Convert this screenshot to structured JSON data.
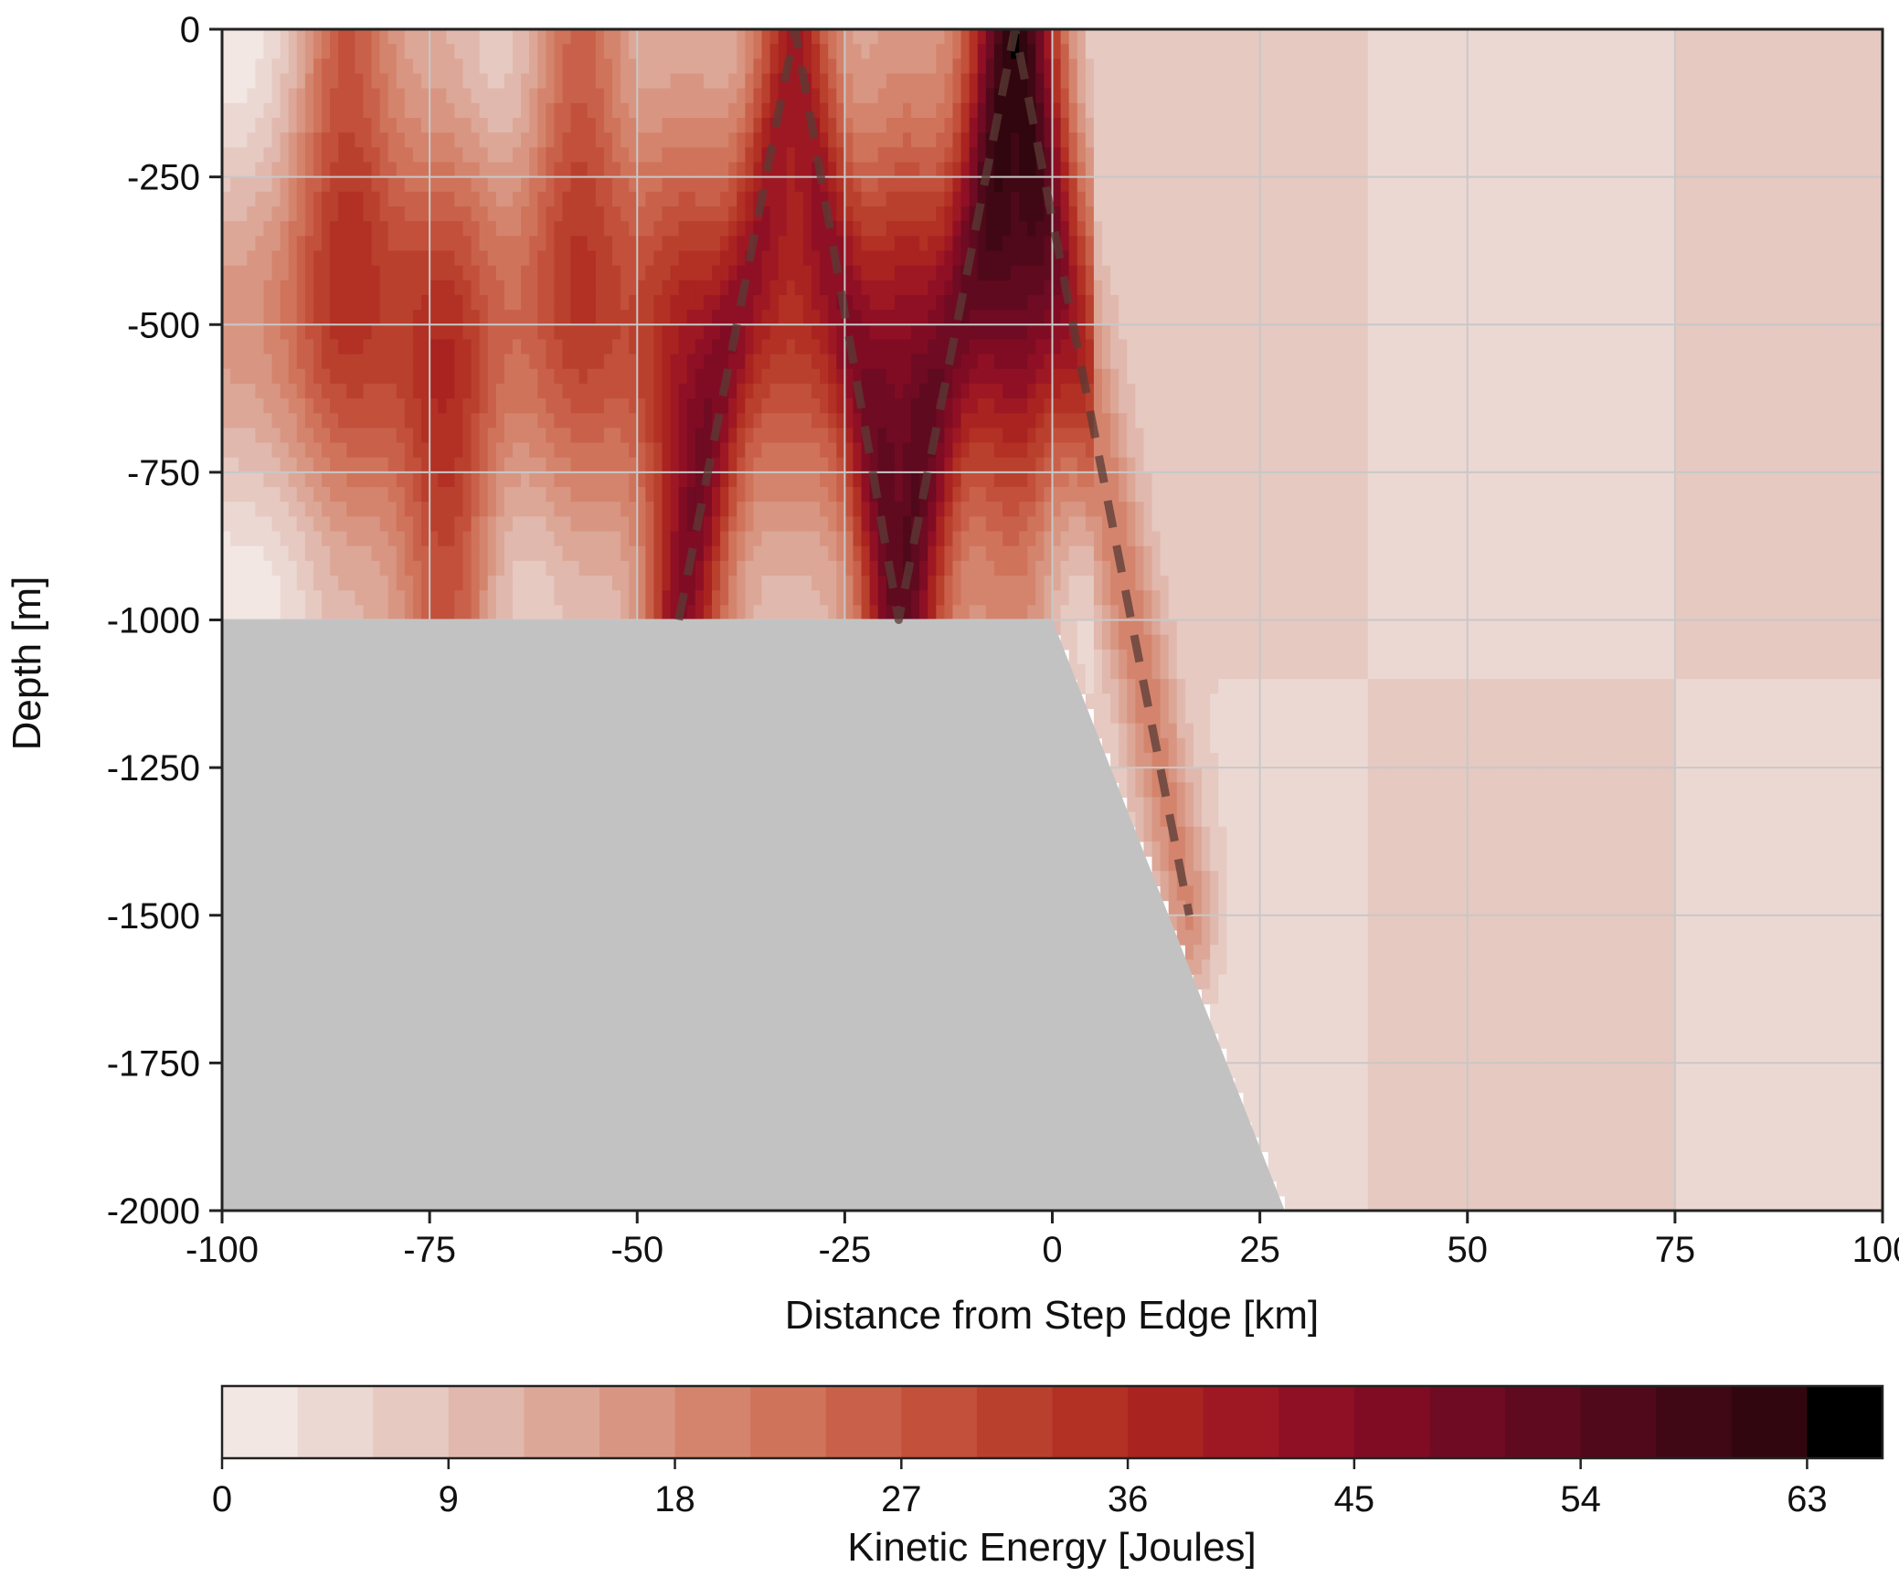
{
  "chart_data": {
    "type": "heatmap",
    "title": "",
    "xlabel": "Distance from Step Edge [km]",
    "ylabel": "Depth [m]",
    "xlim": [
      -100,
      100
    ],
    "ylim": [
      -2000,
      0
    ],
    "x_ticks": [
      -100,
      -75,
      -50,
      -25,
      0,
      25,
      50,
      75,
      100
    ],
    "x_tick_labels": [
      "-100",
      "-75",
      "-50",
      "-25",
      "0",
      "25",
      "50",
      "75",
      "100"
    ],
    "y_ticks": [
      0,
      -250,
      -500,
      -750,
      -1000,
      -1250,
      -1500,
      -1750,
      -2000
    ],
    "y_tick_labels": [
      "0",
      "-250",
      "-500",
      "-750",
      "-1000",
      "-1250",
      "-1500",
      "-1750",
      "-2000"
    ],
    "grid": true,
    "colorbar": {
      "label": "Kinetic Energy [Joules]",
      "min": 0,
      "max": 66,
      "step": 3,
      "ticks": [
        0,
        9,
        18,
        27,
        36,
        45,
        54,
        63
      ],
      "tick_labels": [
        "0",
        "9",
        "18",
        "27",
        "36",
        "45",
        "54",
        "63"
      ],
      "placement": "bottom",
      "colors": [
        "#f3e7e4",
        "#ecd8d3",
        "#e6c9c1",
        "#e1b8ad",
        "#dca797",
        "#d89682",
        "#d4846d",
        "#d0735b",
        "#c9614a",
        "#c2503b",
        "#ba402e",
        "#b23024",
        "#a92320",
        "#9e1823",
        "#8f1024",
        "#800c24",
        "#6f0b22",
        "#5f0a1f",
        "#4f091a",
        "#400814",
        "#31060e"
      ]
    },
    "topography": {
      "color": "#c2c2c2",
      "shelf_depth": -1000,
      "slope_start_x": 0,
      "slope_end_x": 28,
      "bottom_depth": -2000
    },
    "beam_paths": [
      {
        "x": [
          -45,
          -31,
          -18.5,
          -4.5,
          16.5
        ],
        "y": [
          -1000,
          0,
          -1000,
          0,
          -1500
        ]
      }
    ],
    "field_model": {
      "shelf_peaks_x": [
        -85,
        -57,
        -31,
        -4.5
      ],
      "shelf_peak_values": [
        33,
        31,
        31,
        55
      ],
      "bottom_peaks_x": [
        -73,
        -44,
        -18
      ],
      "bottom_peak_values": [
        34,
        38,
        45
      ],
      "offshore_background": 6
    }
  }
}
